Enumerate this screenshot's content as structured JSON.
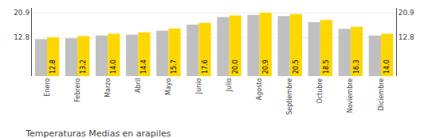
{
  "chart_data": {
    "type": "bar",
    "title": "Temperaturas Medias en arapiles",
    "categories": [
      "Enero",
      "Febrero",
      "Marzo",
      "Abril",
      "Mayo",
      "Junio",
      "Julio",
      "Agosto",
      "Septiembre",
      "Octubre",
      "Noviembre",
      "Diciembre"
    ],
    "series": [
      {
        "color": "#C0C0C0",
        "values": [
          12.2,
          12.5,
          13.4,
          13.7,
          15.0,
          17.0,
          19.5,
          20.2,
          19.8,
          17.8,
          15.6,
          13.4
        ]
      },
      {
        "color": "#FFD700",
        "values": [
          12.8,
          13.2,
          14.0,
          14.4,
          15.7,
          17.6,
          20.0,
          20.9,
          20.5,
          18.5,
          16.3,
          14.0
        ],
        "data_labels": true,
        "value_labels": [
          "12.8",
          "13.2",
          "14.0",
          "14.4",
          "15.7",
          "17.6",
          "20.0",
          "20.9",
          "20.5",
          "18.5",
          "16.3",
          "14.0"
        ]
      }
    ],
    "ylim": [
      0,
      22.5
    ],
    "yticks": [
      12.8,
      20.9
    ],
    "y2lim": [
      0,
      22.5
    ],
    "y2ticks": [
      12.8,
      20.9
    ],
    "grid": true
  }
}
